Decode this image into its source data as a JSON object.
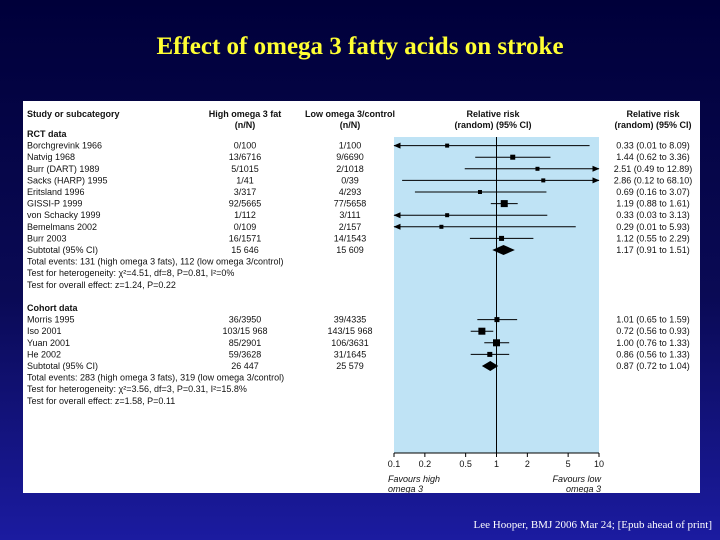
{
  "title": "Effect of omega 3 fatty acids on stroke",
  "citation": "Lee Hooper, BMJ  2006 Mar 24; [Epub ahead of print]",
  "header": {
    "study": "Study or subcategory",
    "high_line1": "High omega 3 fat",
    "high_line2": "(n/N)",
    "low_line1": "Low omega 3/control",
    "low_line2": "(n/N)",
    "rr_line1": "Relative risk",
    "rr_line2": "(random) (95% CI)",
    "rr2_line1": "Relative risk",
    "rr2_line2": "(random) (95% CI)"
  },
  "chart_data": {
    "type": "forest",
    "x_scale": "log",
    "xlim": [
      0.1,
      10
    ],
    "xticks": [
      "0.1",
      "0.2",
      "0.5",
      "1",
      "2",
      "5",
      "10"
    ],
    "xtick_values": [
      0.1,
      0.2,
      0.5,
      1,
      2,
      5,
      10
    ],
    "favours_left": [
      "Favours high",
      "omega 3"
    ],
    "favours_right": [
      "Favours low",
      "omega 3"
    ],
    "groups": [
      {
        "label": "RCT data",
        "studies": [
          {
            "name": "Borchgrevink 1966",
            "high": "0/100",
            "low": "1/100",
            "rr": 0.33,
            "lo": 0.01,
            "hi": 8.09,
            "ci_text": "0.33 (0.01 to 8.09)"
          },
          {
            "name": "Natvig 1968",
            "high": "13/6716",
            "low": "9/6690",
            "rr": 1.44,
            "lo": 0.62,
            "hi": 3.36,
            "ci_text": "1.44 (0.62 to 3.36)"
          },
          {
            "name": "Burr (DART) 1989",
            "high": "5/1015",
            "low": "2/1018",
            "rr": 2.51,
            "lo": 0.49,
            "hi": 12.89,
            "ci_text": "2.51 (0.49 to 12.89)"
          },
          {
            "name": "Sacks (HARP) 1995",
            "high": "1/41",
            "low": "0/39",
            "rr": 2.86,
            "lo": 0.12,
            "hi": 68.1,
            "ci_text": "2.86 (0.12 to 68.10)"
          },
          {
            "name": "Eritsland 1996",
            "high": "3/317",
            "low": "4/293",
            "rr": 0.69,
            "lo": 0.16,
            "hi": 3.07,
            "ci_text": "0.69 (0.16 to 3.07)"
          },
          {
            "name": "GISSI-P 1999",
            "high": "92/5665",
            "low": "77/5658",
            "rr": 1.19,
            "lo": 0.88,
            "hi": 1.61,
            "ci_text": "1.19 (0.88 to 1.61)"
          },
          {
            "name": "von Schacky 1999",
            "high": "1/112",
            "low": "3/111",
            "rr": 0.33,
            "lo": 0.03,
            "hi": 3.13,
            "ci_text": "0.33 (0.03 to 3.13)"
          },
          {
            "name": "Bemelmans 2002",
            "high": "0/109",
            "low": "2/157",
            "rr": 0.29,
            "lo": 0.01,
            "hi": 5.93,
            "ci_text": "0.29 (0.01 to 5.93)"
          },
          {
            "name": "Burr 2003",
            "high": "16/1571",
            "low": "14/1543",
            "rr": 1.12,
            "lo": 0.55,
            "hi": 2.29,
            "ci_text": "1.12 (0.55 to 2.29)"
          }
        ],
        "subtotal": {
          "name": "Subtotal (95% CI)",
          "high": "15 646",
          "low": "15 609",
          "rr": 1.17,
          "lo": 0.91,
          "hi": 1.51,
          "ci_text": "1.17 (0.91 to 1.51)"
        },
        "notes": [
          "Total events: 131 (high omega 3 fats), 112 (low omega 3/control)",
          "Test for heterogeneity: χ²=4.51, df=8, P=0.81, I²=0%",
          "Test for overall effect: z=1.24, P=0.22"
        ]
      },
      {
        "label": "Cohort data",
        "studies": [
          {
            "name": "Morris 1995",
            "high": "36/3950",
            "low": "39/4335",
            "rr": 1.01,
            "lo": 0.65,
            "hi": 1.59,
            "ci_text": "1.01 (0.65 to 1.59)"
          },
          {
            "name": "Iso 2001",
            "high": "103/15 968",
            "low": "143/15 968",
            "rr": 0.72,
            "lo": 0.56,
            "hi": 0.93,
            "ci_text": "0.72 (0.56 to 0.93)"
          },
          {
            "name": "Yuan 2001",
            "high": "85/2901",
            "low": "106/3631",
            "rr": 1.0,
            "lo": 0.76,
            "hi": 1.33,
            "ci_text": "1.00 (0.76 to 1.33)"
          },
          {
            "name": "He 2002",
            "high": "59/3628",
            "low": "31/1645",
            "rr": 0.86,
            "lo": 0.56,
            "hi": 1.33,
            "ci_text": "0.86 (0.56 to 1.33)"
          }
        ],
        "subtotal": {
          "name": "Subtotal (95% CI)",
          "high": "26 447",
          "low": "25 579",
          "rr": 0.87,
          "lo": 0.72,
          "hi": 1.04,
          "ci_text": "0.87 (0.72 to 1.04)"
        },
        "notes": [
          "Total events: 283 (high omega 3 fats), 319 (low omega 3/control)",
          "Test for heterogeneity: χ²=3.56, df=3, P=0.31, I²=15.8%",
          "Test for overall effect: z=1.58, P=0.11"
        ]
      }
    ]
  },
  "colors": {
    "plot_background": "#bfe3f5",
    "title": "#ffff33",
    "marker": "#000000"
  }
}
